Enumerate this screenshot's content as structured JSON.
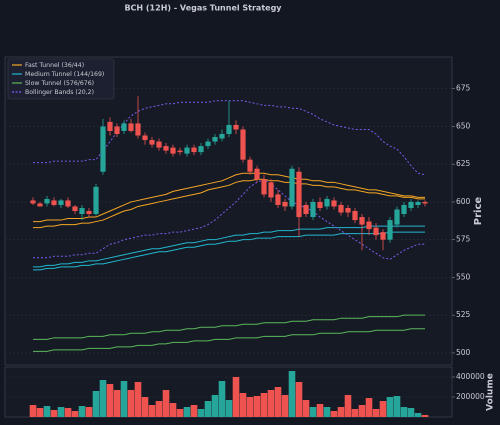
{
  "chart_data": {
    "type": "candlestick",
    "title": "BCH (12H) - Vegas Tunnel Strategy",
    "ylabel": "Price",
    "ylim": [
      492,
      696
    ],
    "yticks": [
      500,
      525,
      550,
      575,
      600,
      625,
      650,
      675
    ],
    "grid": true,
    "legend": "upper left",
    "up_color": "#26a69a",
    "down_color": "#ef5350",
    "candles": {
      "open": [
        601,
        599,
        599,
        601,
        598,
        601,
        597,
        592,
        594,
        592,
        620,
        653,
        650,
        647,
        652,
        652,
        644,
        641,
        640,
        637,
        636,
        634,
        632,
        636,
        633,
        637,
        640,
        642,
        645,
        651,
        648,
        628,
        622,
        615,
        613,
        605,
        600,
        597,
        620,
        598,
        590,
        600,
        597,
        601,
        598,
        596,
        594,
        590,
        587,
        583,
        580,
        575,
        585,
        592,
        596,
        598,
        600
      ],
      "high": [
        603,
        600,
        604,
        603,
        602,
        603,
        598,
        598,
        596,
        612,
        655,
        656,
        652,
        654,
        655,
        670,
        646,
        643,
        642,
        639,
        638,
        636,
        638,
        638,
        639,
        642,
        645,
        648,
        667,
        654,
        650,
        630,
        624,
        618,
        615,
        608,
        602,
        624,
        623,
        600,
        602,
        603,
        604,
        603,
        600,
        598,
        596,
        592,
        590,
        586,
        582,
        590,
        597,
        600,
        602,
        601,
        601
      ],
      "low": [
        598,
        597,
        597,
        597,
        596,
        596,
        592,
        588,
        590,
        591,
        618,
        644,
        643,
        645,
        646,
        642,
        638,
        636,
        634,
        632,
        630,
        631,
        630,
        631,
        631,
        635,
        638,
        640,
        643,
        645,
        626,
        618,
        613,
        603,
        600,
        596,
        594,
        595,
        577,
        590,
        588,
        594,
        595,
        595,
        591,
        590,
        586,
        568,
        578,
        575,
        568,
        573,
        583,
        590,
        594,
        596,
        597
      ],
      "close": [
        599,
        597,
        602,
        598,
        601,
        597,
        594,
        596,
        592,
        610,
        650,
        647,
        645,
        652,
        647,
        644,
        641,
        638,
        636,
        634,
        632,
        633,
        636,
        633,
        637,
        640,
        643,
        645,
        651,
        648,
        628,
        620,
        615,
        605,
        603,
        598,
        597,
        622,
        590,
        592,
        600,
        596,
        602,
        597,
        593,
        593,
        588,
        585,
        582,
        578,
        575,
        588,
        595,
        598,
        600,
        600,
        599
      ]
    },
    "series": [
      {
        "name": "Fast Tunnel (36/44)",
        "color": "#f5a623",
        "style": "solid",
        "upper": [
          587,
          587,
          588,
          588,
          588,
          589,
          589,
          589,
          590,
          590,
          592,
          594,
          596,
          598,
          600,
          601,
          602,
          603,
          604,
          605,
          607,
          608,
          609,
          610,
          611,
          612,
          613,
          614,
          616,
          618,
          619,
          619,
          619,
          619,
          618,
          618,
          617,
          616,
          615,
          615,
          614,
          614,
          613,
          613,
          612,
          611,
          610,
          609,
          608,
          608,
          607,
          606,
          605,
          604,
          604,
          603,
          603
        ],
        "lower": [
          583,
          583,
          584,
          584,
          585,
          585,
          585,
          586,
          586,
          587,
          588,
          590,
          592,
          594,
          595,
          597,
          598,
          599,
          600,
          601,
          602,
          603,
          604,
          605,
          606,
          608,
          609,
          610,
          611,
          613,
          614,
          614,
          615,
          615,
          614,
          614,
          613,
          613,
          612,
          612,
          611,
          611,
          610,
          610,
          609,
          608,
          608,
          607,
          606,
          606,
          605,
          604,
          604,
          603,
          603,
          602,
          602
        ]
      },
      {
        "name": "Medium Tunnel (144/169)",
        "color": "#22b8cf",
        "style": "solid",
        "upper": [
          557,
          557,
          558,
          558,
          559,
          559,
          560,
          560,
          561,
          561,
          562,
          563,
          564,
          565,
          566,
          567,
          568,
          569,
          569,
          570,
          571,
          572,
          573,
          573,
          574,
          575,
          575,
          576,
          577,
          578,
          578,
          579,
          579,
          580,
          580,
          581,
          581,
          581,
          582,
          582,
          582,
          582,
          583,
          583,
          583,
          583,
          583,
          583,
          584,
          584,
          584,
          584,
          584,
          584,
          584,
          584,
          584
        ],
        "lower": [
          555,
          555,
          556,
          556,
          557,
          557,
          557,
          558,
          558,
          559,
          559,
          560,
          561,
          562,
          563,
          564,
          565,
          566,
          567,
          567,
          568,
          569,
          570,
          570,
          571,
          572,
          572,
          573,
          574,
          574,
          575,
          575,
          576,
          576,
          576,
          577,
          577,
          577,
          577,
          578,
          578,
          578,
          578,
          578,
          579,
          579,
          579,
          579,
          579,
          579,
          579,
          580,
          580,
          580,
          580,
          580,
          580
        ]
      },
      {
        "name": "Slow Tunnel (576/676)",
        "color": "#5cb85c",
        "style": "solid",
        "upper": [
          509,
          509,
          509,
          510,
          510,
          510,
          510,
          510,
          511,
          511,
          511,
          512,
          512,
          512,
          513,
          513,
          513,
          514,
          514,
          515,
          515,
          515,
          516,
          516,
          517,
          517,
          517,
          518,
          518,
          518,
          519,
          519,
          519,
          520,
          520,
          520,
          520,
          521,
          521,
          521,
          522,
          522,
          522,
          522,
          523,
          523,
          523,
          523,
          524,
          524,
          524,
          524,
          524,
          525,
          525,
          525,
          525
        ],
        "lower": [
          501,
          501,
          501,
          502,
          502,
          502,
          502,
          502,
          503,
          503,
          503,
          503,
          504,
          504,
          504,
          505,
          505,
          505,
          506,
          506,
          507,
          507,
          507,
          508,
          508,
          508,
          509,
          509,
          509,
          510,
          510,
          510,
          510,
          511,
          511,
          511,
          511,
          512,
          512,
          512,
          512,
          513,
          513,
          513,
          513,
          514,
          514,
          514,
          514,
          515,
          515,
          515,
          515,
          515,
          516,
          516,
          516
        ]
      },
      {
        "name": "Bollinger Bands (20,2)",
        "color": "#7b5cf0",
        "style": "dashed",
        "upper": [
          626,
          626,
          626,
          627,
          627,
          627,
          627,
          627,
          628,
          628,
          634,
          640,
          646,
          652,
          657,
          660,
          662,
          663,
          664,
          665,
          665,
          666,
          666,
          666,
          666,
          666,
          667,
          667,
          667,
          667,
          667,
          666,
          665,
          664,
          664,
          663,
          663,
          662,
          662,
          660,
          658,
          655,
          653,
          651,
          650,
          649,
          648,
          648,
          648,
          645,
          640,
          637,
          635,
          630,
          624,
          619,
          618
        ],
        "lower": [
          563,
          563,
          563,
          564,
          564,
          564,
          565,
          565,
          566,
          566,
          569,
          572,
          573,
          575,
          576,
          577,
          578,
          578,
          579,
          579,
          580,
          580,
          581,
          582,
          583,
          585,
          588,
          592,
          596,
          600,
          605,
          610,
          613,
          615,
          612,
          608,
          604,
          600,
          598,
          596,
          594,
          590,
          587,
          584,
          581,
          578,
          575,
          572,
          569,
          566,
          563,
          562,
          565,
          568,
          570,
          572,
          572
        ]
      }
    ],
    "volume_label": "Volume",
    "volume_ylim": [
      0,
      500000
    ],
    "volume_yticks": [
      200000,
      400000
    ],
    "volume": [
      120000,
      90000,
      110000,
      70000,
      100000,
      90000,
      60000,
      110000,
      100000,
      260000,
      370000,
      330000,
      270000,
      360000,
      270000,
      350000,
      200000,
      120000,
      160000,
      270000,
      140000,
      80000,
      100000,
      120000,
      80000,
      160000,
      220000,
      360000,
      170000,
      400000,
      240000,
      200000,
      210000,
      240000,
      270000,
      300000,
      220000,
      460000,
      350000,
      170000,
      100000,
      130000,
      100000,
      60000,
      100000,
      220000,
      80000,
      120000,
      190000,
      80000,
      160000,
      200000,
      210000,
      100000,
      90000,
      40000,
      20000
    ]
  }
}
